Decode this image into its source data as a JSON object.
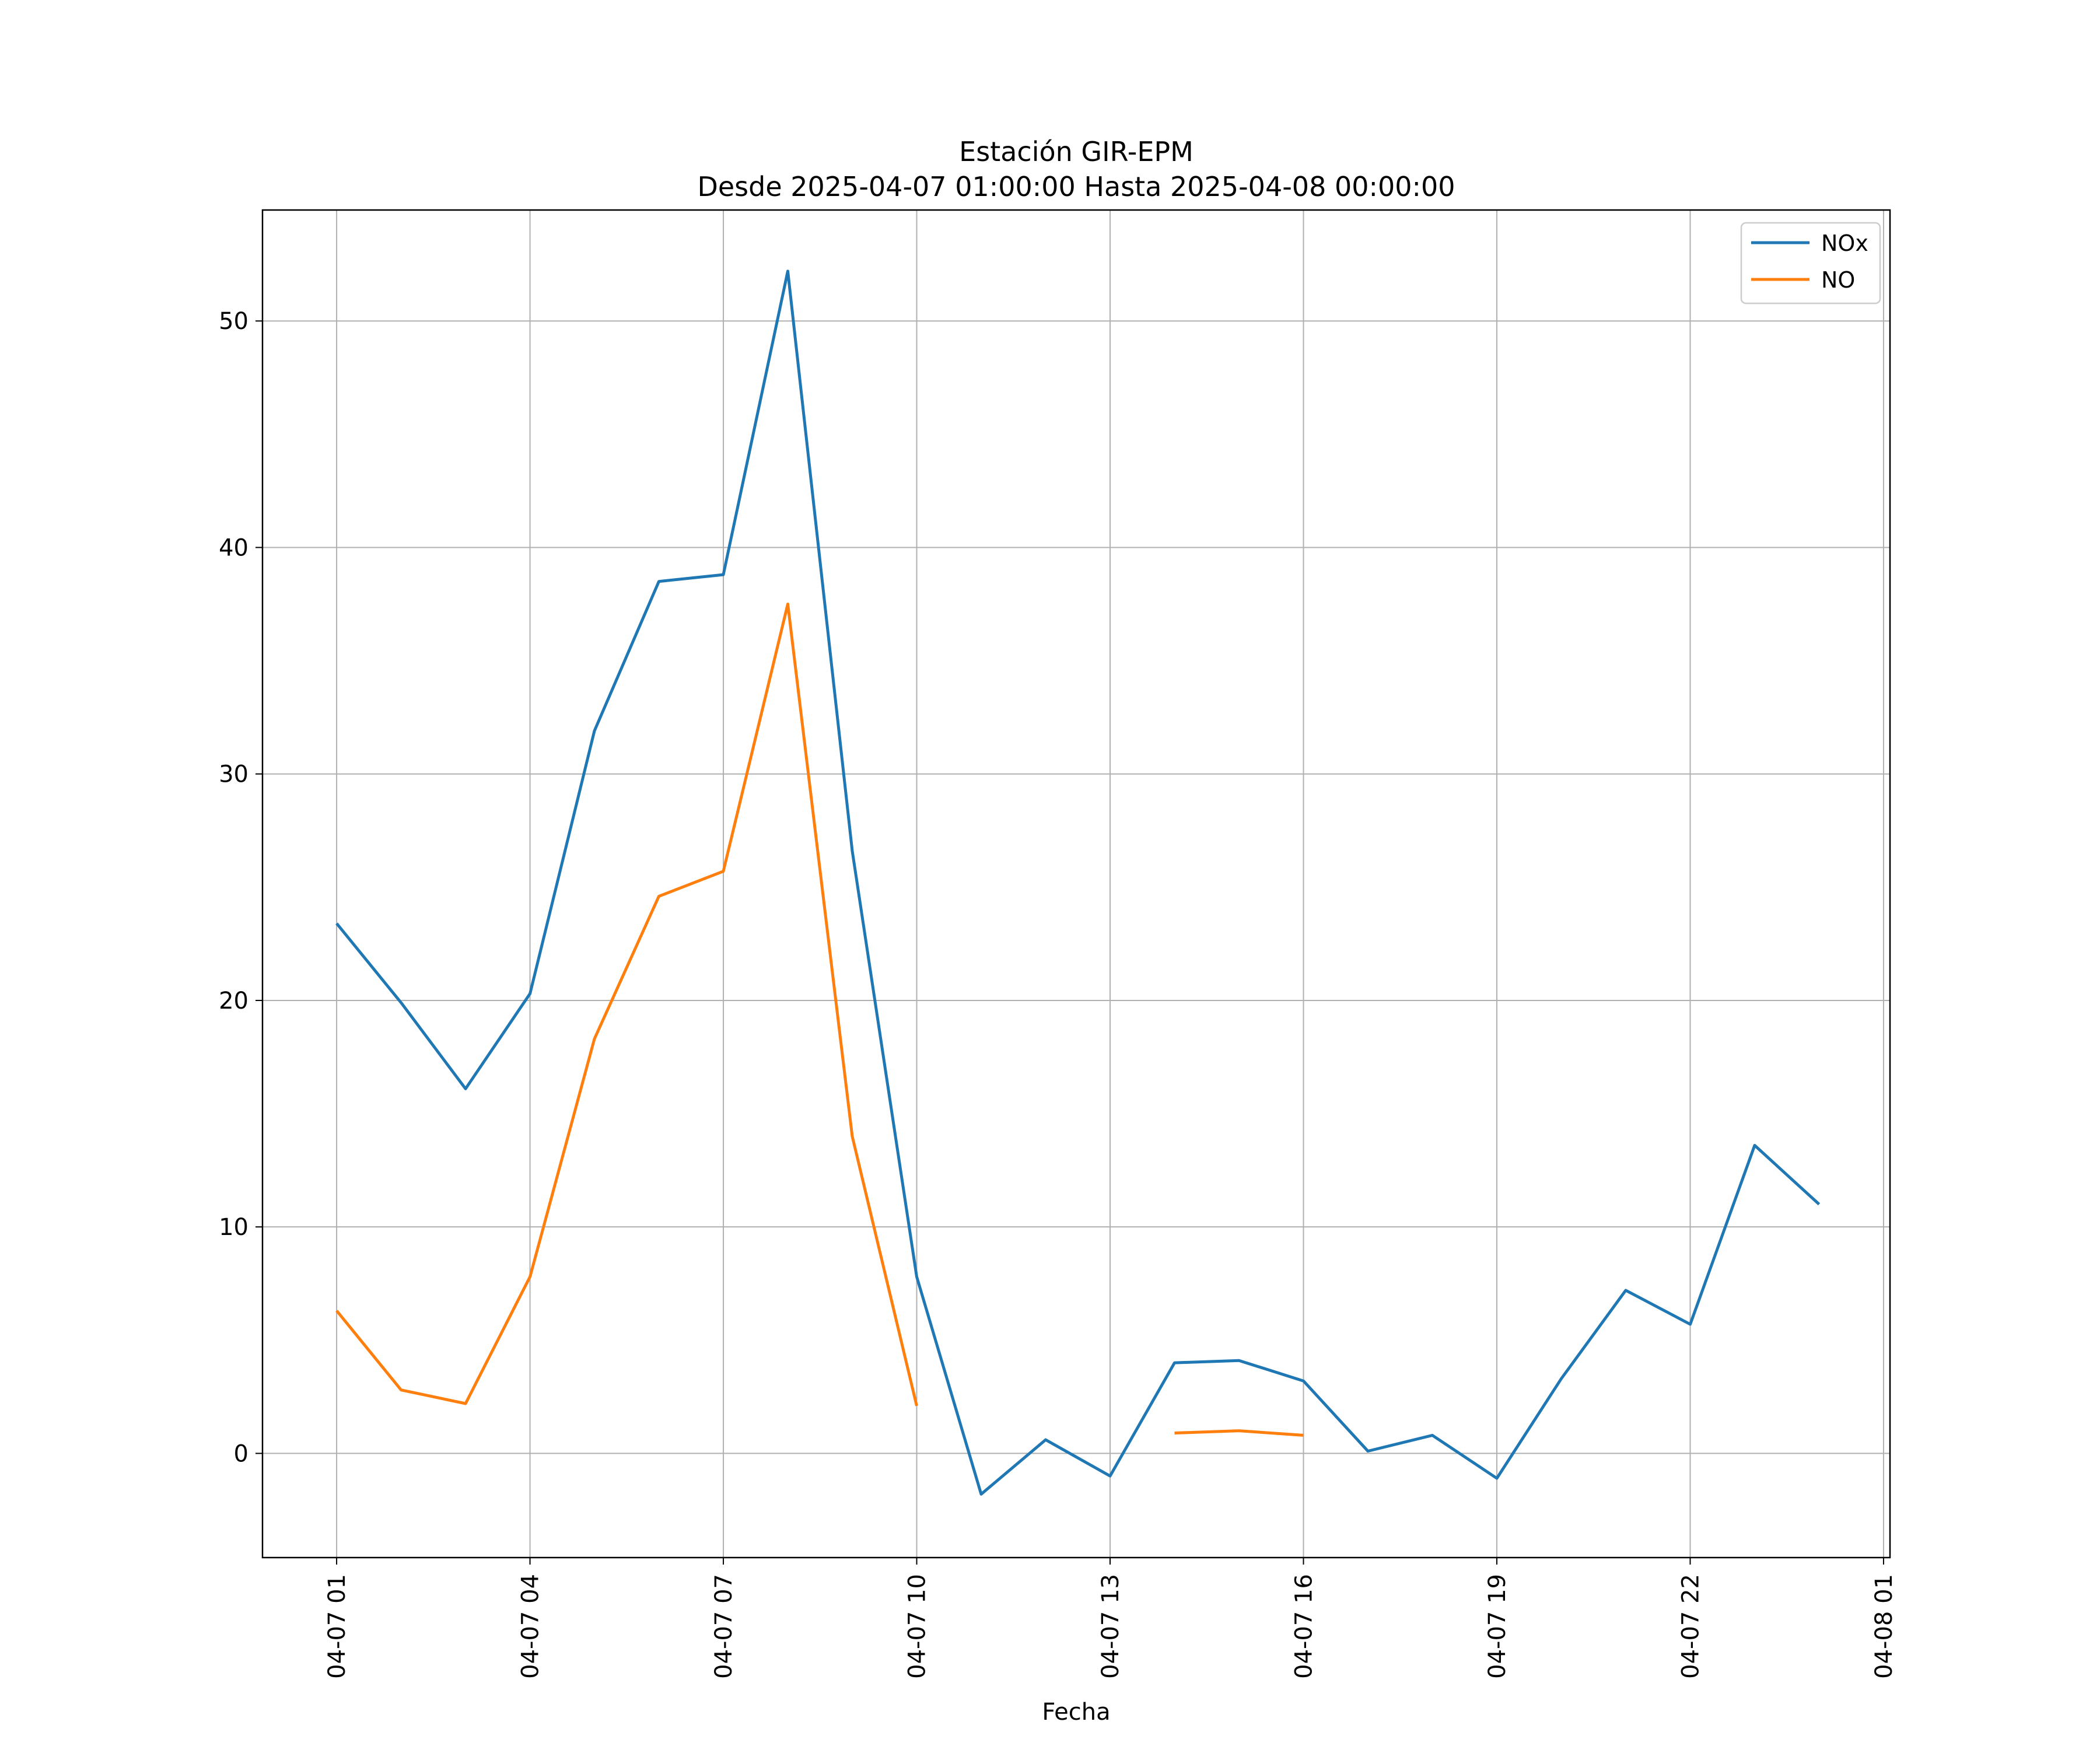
{
  "chart_data": {
    "type": "line",
    "title": "Estación GIR-EPM",
    "subtitle": "Desde 2025-04-07 01:00:00 Hasta 2025-04-08 00:00:00",
    "xlabel": "Fecha",
    "ylabel": "",
    "x_hours": [
      1,
      2,
      3,
      4,
      5,
      6,
      7,
      8,
      9,
      10,
      11,
      12,
      13,
      14,
      15,
      16,
      17,
      18,
      19,
      20,
      21,
      22,
      23,
      24
    ],
    "x_ticks": [
      {
        "hour": 1,
        "label": "04-07 01"
      },
      {
        "hour": 4,
        "label": "04-07 04"
      },
      {
        "hour": 7,
        "label": "04-07 07"
      },
      {
        "hour": 10,
        "label": "04-07 10"
      },
      {
        "hour": 13,
        "label": "04-07 13"
      },
      {
        "hour": 16,
        "label": "04-07 16"
      },
      {
        "hour": 19,
        "label": "04-07 19"
      },
      {
        "hour": 22,
        "label": "04-07 22"
      },
      {
        "hour": 25,
        "label": "04-08 01"
      }
    ],
    "xlim_hours": [
      -0.15,
      25.1
    ],
    "y_ticks": [
      0,
      10,
      20,
      30,
      40,
      50
    ],
    "ylim": [
      -4.6,
      54.9
    ],
    "grid": true,
    "legend_position": "top-right",
    "series": [
      {
        "name": "NOx",
        "color": "#1f77b4",
        "values": [
          23.4,
          19.9,
          16.1,
          20.3,
          31.9,
          38.5,
          38.8,
          52.2,
          26.6,
          7.8,
          -1.8,
          0.6,
          -1.0,
          4.0,
          4.1,
          3.2,
          0.1,
          0.8,
          -1.1,
          3.3,
          7.2,
          5.7,
          13.6,
          11.0
        ]
      },
      {
        "name": "NO",
        "color": "#ff7f0e",
        "values": [
          6.3,
          2.8,
          2.2,
          7.8,
          18.3,
          24.6,
          25.7,
          37.5,
          14.0,
          2.1,
          null,
          null,
          null,
          0.9,
          1.0,
          0.8,
          null,
          null,
          null,
          null,
          null,
          null,
          null,
          null
        ]
      }
    ]
  }
}
